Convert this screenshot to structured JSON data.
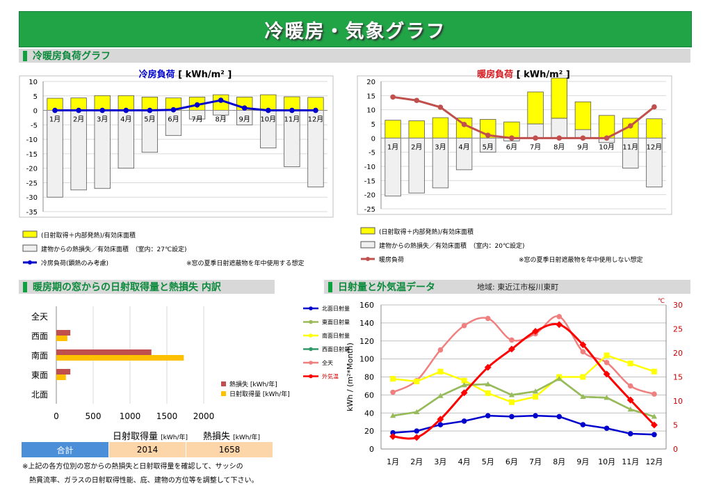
{
  "title": "冷暖房・気象グラフ",
  "sec1": "冷暖房負荷グラフ",
  "sec2": "暖房期の窓からの日射取得量と熱損失 内訳",
  "sec3": "日射量と外気温データ",
  "sec3_sub": "地域: 東近江市桜川東町",
  "months": [
    "1月",
    "2月",
    "3月",
    "4月",
    "5月",
    "6月",
    "7月",
    "8月",
    "9月",
    "10月",
    "11月",
    "12月"
  ],
  "cooling": {
    "title_main": "冷房負荷",
    "title_unit": "[ kWh/m² ]",
    "legend": [
      "(日射取得＋内部発熱)/有効床面積",
      "建物からの熱損失／有効床面積　（室内：27℃設定)",
      "冷房負荷(顕熱のみ考慮)"
    ],
    "note": "※窓の夏季日射遮蔽物を年中使用する想定"
  },
  "heating": {
    "title_main": "暖房負荷",
    "title_unit": "[ kWh/m² ]",
    "legend": [
      "(日射取得＋内部発熱)/有効床面積",
      "建物からの熱損失／有効床面積　（室内：20℃設定)",
      "暖房負荷"
    ],
    "note": "※窓の夏季日射遮蔽物を年中使用しない想定"
  },
  "window": {
    "legend": [
      "熱損失 [kWh/年]",
      "日射取得量 [kWh/年]"
    ],
    "hdr_gain": "日射取得量",
    "hdr_gain_unit": "[kWh/年]",
    "hdr_loss": "熱損失",
    "hdr_loss_unit": "[kWh/年]",
    "total_label": "合計",
    "total_gain": "2014",
    "total_loss": "1658",
    "note1": "※上記の各方位別の窓からの熱損失と日射取得量を確認して、サッシの",
    "note2": "熱貫流率、ガラスの日射取得性能、庇、建物の方位等を調整して下さい。"
  },
  "weather": {
    "ylabel": "kWh / (m²*Month)",
    "y2unit": "℃"
  },
  "chart_data": [
    {
      "type": "bar",
      "title": "冷房負荷 [ kWh/m² ]",
      "categories": [
        "1月",
        "2月",
        "3月",
        "4月",
        "5月",
        "6月",
        "7月",
        "8月",
        "9月",
        "10月",
        "11月",
        "12月"
      ],
      "ylim": [
        -35,
        10
      ],
      "yticks": [
        10,
        5,
        0,
        -5,
        -10,
        -15,
        -20,
        -25,
        -30,
        -35
      ],
      "series": [
        {
          "name": "(日射取得＋内部発熱)/有効床面積",
          "kind": "bar",
          "color": "#ffff00",
          "values": [
            4.2,
            4.3,
            5.1,
            5.1,
            4.6,
            4.3,
            4.6,
            5.4,
            4.6,
            5.4,
            4.7,
            4.5
          ]
        },
        {
          "name": "建物からの熱損失／有効床面積　（室内：27℃設定)",
          "kind": "bar",
          "color": "#f0f0f0",
          "values": [
            -30,
            -27.5,
            -27,
            -20,
            -14.5,
            -8.7,
            -3,
            -1.6,
            -5,
            -13,
            -19.5,
            -26.5
          ]
        },
        {
          "name": "冷房負荷(顕熱のみ考慮)",
          "kind": "line",
          "color": "#0000cc",
          "values": [
            0,
            0,
            0,
            0,
            0,
            0.2,
            1.9,
            3.5,
            0.8,
            0,
            0,
            0
          ]
        }
      ]
    },
    {
      "type": "bar",
      "title": "暖房負荷 [ kWh/m² ]",
      "categories": [
        "1月",
        "2月",
        "3月",
        "4月",
        "5月",
        "6月",
        "7月",
        "8月",
        "9月",
        "10月",
        "11月",
        "12月"
      ],
      "ylim": [
        -25,
        20
      ],
      "yticks": [
        20,
        15,
        10,
        5,
        0,
        -5,
        -10,
        -15,
        -20,
        -25
      ],
      "series": [
        {
          "name": "(日射取得＋内部発熱)/有効床面積",
          "kind": "bar",
          "color": "#ffff00",
          "values": [
            6.3,
            6.1,
            7.2,
            7.1,
            6.6,
            5.7,
            11.3,
            14.2,
            9.8,
            8,
            7,
            6.8
          ]
        },
        {
          "name": "建物からの熱損失／有効床面積　（室内：20℃設定)",
          "kind": "bar",
          "color": "#f0f0f0",
          "values": [
            -20.5,
            -19.4,
            -17.6,
            -11.2,
            -5,
            -1,
            5,
            7,
            3,
            -1.6,
            -10.6,
            -17.3
          ]
        },
        {
          "name": "暖房負荷",
          "kind": "line",
          "color": "#c0504d",
          "values": [
            14.5,
            13.3,
            10.9,
            4.8,
            1,
            0,
            0,
            0,
            0,
            0,
            4.3,
            11
          ]
        }
      ]
    },
    {
      "type": "bar",
      "orientation": "horizontal",
      "categories": [
        "全天",
        "西面",
        "南面",
        "東面",
        "北面"
      ],
      "xlim": [
        0,
        2000
      ],
      "xticks": [
        0,
        500,
        1000,
        1500,
        2000
      ],
      "series": [
        {
          "name": "熱損失 [kWh/年]",
          "color": "#c0504d",
          "values": [
            0,
            190,
            1290,
            190,
            0
          ]
        },
        {
          "name": "日射取得量 [kWh/年]",
          "color": "#ffc000",
          "values": [
            0,
            150,
            1730,
            130,
            0
          ]
        }
      ]
    },
    {
      "type": "line",
      "categories": [
        "1月",
        "2月",
        "3月",
        "4月",
        "5月",
        "6月",
        "7月",
        "8月",
        "9月",
        "10月",
        "11月",
        "12月"
      ],
      "ylabel": "kWh / (m²*Month)",
      "ylim": [
        0,
        160
      ],
      "y2lim": [
        0,
        30
      ],
      "y2unit": "℃",
      "series": [
        {
          "name": "北面日射量",
          "color": "#0000cc",
          "axis": "y",
          "values": [
            18,
            20,
            27,
            31,
            37,
            36,
            37,
            36,
            27,
            23,
            17,
            16
          ]
        },
        {
          "name": "東面日射量",
          "color": "#9bbb59",
          "axis": "y",
          "values": [
            37,
            41,
            59,
            71,
            72,
            60,
            64,
            78,
            58,
            57,
            44,
            36
          ]
        },
        {
          "name": "南面日射量",
          "color": "#ffff00",
          "axis": "y",
          "values": [
            78,
            75,
            86,
            76,
            62,
            52,
            58,
            80,
            80,
            104,
            95,
            86
          ]
        },
        {
          "name": "西面日射量",
          "color": "#33996a",
          "axis": "y",
          "values": [
            37,
            41,
            59,
            71,
            72,
            60,
            64,
            78,
            58,
            57,
            44,
            36
          ]
        },
        {
          "name": "全天",
          "color": "#f08080",
          "axis": "y",
          "values": [
            63,
            76,
            110,
            137,
            145,
            121,
            128,
            147,
            108,
            96,
            70,
            61
          ]
        },
        {
          "name": "外気温",
          "color": "#ff0000",
          "axis": "y2",
          "values": [
            2.6,
            2.4,
            6.2,
            11.7,
            17,
            20.8,
            24.5,
            25.9,
            21.7,
            15.6,
            10.2,
            5
          ]
        }
      ]
    }
  ]
}
